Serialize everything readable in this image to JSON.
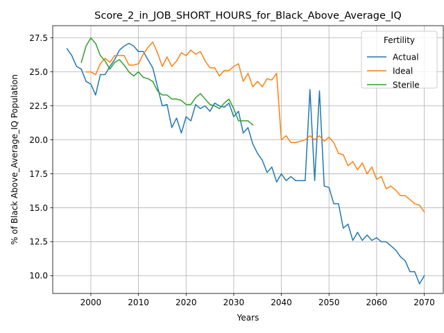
{
  "chart_data": {
    "type": "line",
    "title": "Score_2_in_JOB_SHORT_HOURS_for_Black_Above_Average_IQ",
    "xlabel": "Years",
    "ylabel": "% of Black Above_Average_IQ Population",
    "xlim": [
      1992,
      2074
    ],
    "ylim": [
      8.7,
      28.4
    ],
    "xticks": [
      2000,
      2010,
      2020,
      2030,
      2040,
      2050,
      2060,
      2070
    ],
    "yticks": [
      10.0,
      12.5,
      15.0,
      17.5,
      20.0,
      22.5,
      25.0,
      27.5
    ],
    "grid": true,
    "legend": {
      "title": "Fertility",
      "placement": "top-right"
    },
    "series": [
      {
        "name": "Actual",
        "color": "#1f77b4",
        "x": [
          1995,
          1996,
          1997,
          1998,
          1999,
          2000,
          2001,
          2002,
          2003,
          2004,
          2005,
          2006,
          2007,
          2008,
          2009,
          2010,
          2011,
          2012,
          2013,
          2014,
          2015,
          2016,
          2017,
          2018,
          2019,
          2020,
          2021,
          2022,
          2023,
          2024,
          2025,
          2026,
          2027,
          2028,
          2029,
          2030,
          2031,
          2032,
          2033,
          2034,
          2035,
          2036,
          2037,
          2038,
          2039,
          2040,
          2041,
          2042,
          2043,
          2044,
          2045,
          2046,
          2047,
          2048,
          2049,
          2050,
          2051,
          2052,
          2053,
          2054,
          2055,
          2056,
          2057,
          2058,
          2059,
          2060,
          2061,
          2062,
          2063,
          2064,
          2065,
          2066,
          2067,
          2068,
          2069,
          2070
        ],
        "values": [
          26.7,
          26.2,
          25.4,
          25.2,
          24.3,
          24.1,
          23.3,
          24.8,
          24.8,
          25.4,
          25.9,
          26.6,
          26.9,
          27.1,
          26.9,
          26.5,
          26.5,
          25.9,
          25.3,
          23.9,
          22.5,
          22.6,
          20.9,
          21.6,
          20.5,
          21.7,
          21.4,
          22.6,
          22.3,
          22.5,
          22.1,
          22.7,
          22.5,
          22.4,
          22.7,
          21.7,
          22.1,
          20.5,
          20.9,
          19.7,
          19.0,
          18.5,
          17.6,
          18.0,
          16.9,
          17.5,
          17.0,
          17.3,
          17.0,
          17.0,
          17.0,
          23.7,
          17.0,
          23.6,
          16.6,
          16.5,
          15.3,
          15.3,
          13.5,
          13.8,
          12.6,
          13.2,
          12.6,
          13.0,
          12.6,
          12.8,
          12.5,
          12.5,
          12.2,
          11.9,
          11.4,
          11.1,
          10.3,
          10.3,
          9.4,
          10.0
        ]
      },
      {
        "name": "Ideal",
        "color": "#ff7f0e",
        "x": [
          1999,
          2000,
          2001,
          2002,
          2003,
          2004,
          2005,
          2006,
          2007,
          2008,
          2009,
          2010,
          2011,
          2012,
          2013,
          2014,
          2015,
          2016,
          2017,
          2018,
          2019,
          2020,
          2021,
          2022,
          2023,
          2024,
          2025,
          2026,
          2027,
          2028,
          2029,
          2030,
          2031,
          2032,
          2033,
          2034,
          2035,
          2036,
          2037,
          2038,
          2039,
          2040,
          2041,
          2042,
          2043,
          2044,
          2045,
          2046,
          2047,
          2048,
          2049,
          2050,
          2051,
          2052,
          2053,
          2054,
          2055,
          2056,
          2057,
          2058,
          2059,
          2060,
          2061,
          2062,
          2063,
          2064,
          2065,
          2066,
          2067,
          2068,
          2069,
          2070
        ],
        "values": [
          25.0,
          25.0,
          24.8,
          25.6,
          26.0,
          25.7,
          26.2,
          26.2,
          26.2,
          25.5,
          25.5,
          25.6,
          26.3,
          26.8,
          27.2,
          26.4,
          25.4,
          26.1,
          25.4,
          25.8,
          26.4,
          26.2,
          26.6,
          26.3,
          26.5,
          25.8,
          25.3,
          25.3,
          24.7,
          25.1,
          25.1,
          25.4,
          25.6,
          24.3,
          24.9,
          23.9,
          24.3,
          23.9,
          24.5,
          24.4,
          24.9,
          20.0,
          20.3,
          19.8,
          19.8,
          19.9,
          20.0,
          20.3,
          20.0,
          20.3,
          19.9,
          20.2,
          19.8,
          19.0,
          18.9,
          18.1,
          18.4,
          17.8,
          18.3,
          17.5,
          18.0,
          17.1,
          17.3,
          16.4,
          16.6,
          16.3,
          15.9,
          15.9,
          15.6,
          15.3,
          15.2,
          14.7
        ]
      },
      {
        "name": "Sterile",
        "color": "#2ca02c",
        "x": [
          1998,
          1999,
          2000,
          2001,
          2002,
          2003,
          2004,
          2005,
          2006,
          2007,
          2008,
          2009,
          2010,
          2011,
          2012,
          2013,
          2014,
          2015,
          2016,
          2017,
          2018,
          2019,
          2020,
          2021,
          2022,
          2023,
          2024,
          2025,
          2026,
          2027,
          2028,
          2029,
          2030,
          2031,
          2032,
          2033,
          2034
        ],
        "values": [
          25.7,
          26.9,
          27.5,
          27.1,
          26.2,
          25.8,
          25.2,
          25.7,
          25.9,
          25.5,
          25.0,
          24.7,
          25.0,
          24.6,
          24.5,
          24.3,
          23.6,
          23.3,
          23.3,
          23.0,
          23.0,
          22.9,
          22.6,
          22.6,
          23.1,
          23.4,
          23.0,
          22.6,
          22.5,
          22.3,
          22.7,
          23.0,
          22.3,
          21.4,
          21.4,
          21.4,
          21.1
        ]
      }
    ]
  }
}
